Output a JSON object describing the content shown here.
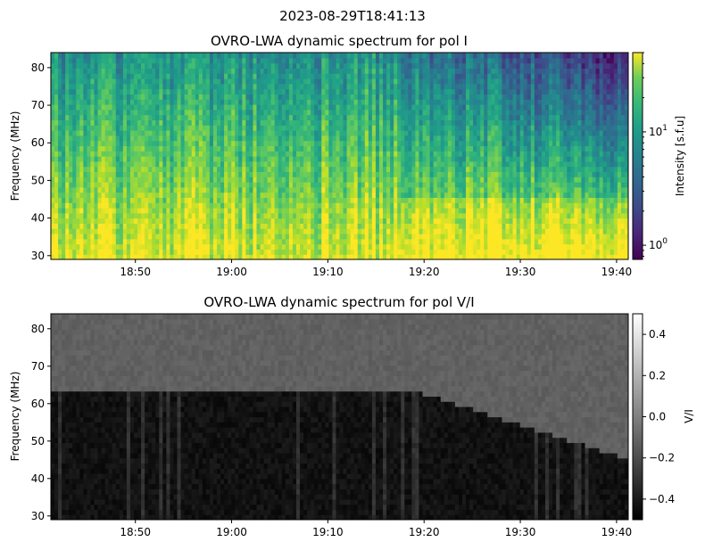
{
  "figure": {
    "suptitle": "2023-08-29T18:41:13"
  },
  "chart_data": [
    {
      "type": "heatmap",
      "title": "OVRO-LWA dynamic spectrum for pol I",
      "xlabel": "",
      "ylabel": "Frequency (MHz)",
      "x_start": "18:41:13",
      "x_end": "19:41:13",
      "ylim": [
        29,
        84
      ],
      "x_ticks": [
        "18:50",
        "19:00",
        "19:10",
        "19:20",
        "19:30",
        "19:40"
      ],
      "y_ticks": [
        30,
        40,
        50,
        60,
        70,
        80
      ],
      "colorbar": {
        "label": "Intensity [s.f.u]",
        "scale": "log",
        "colormap": "viridis",
        "range": [
          0.75,
          50
        ],
        "tick_labels": [
          {
            "value": 1,
            "base": "10",
            "exp": "0"
          },
          {
            "value": 10,
            "base": "10",
            "exp": "1"
          }
        ]
      }
    },
    {
      "type": "heatmap",
      "title": "OVRO-LWA dynamic spectrum for pol V/I",
      "xlabel": "",
      "ylabel": "Frequency (MHz)",
      "x_start": "18:41:13",
      "x_end": "19:41:13",
      "ylim": [
        29,
        84
      ],
      "x_ticks": [
        "18:50",
        "19:00",
        "19:10",
        "19:20",
        "19:30",
        "19:40"
      ],
      "y_ticks": [
        30,
        40,
        50,
        60,
        70,
        80
      ],
      "colorbar": {
        "label": "V/I",
        "scale": "linear",
        "colormap": "gray",
        "range": [
          -0.5,
          0.5
        ],
        "tick_labels": [
          "−0.4",
          "−0.2",
          "0.0",
          "0.2",
          "0.4"
        ],
        "tick_values": [
          -0.4,
          -0.2,
          0.0,
          0.2,
          0.4
        ]
      }
    }
  ]
}
